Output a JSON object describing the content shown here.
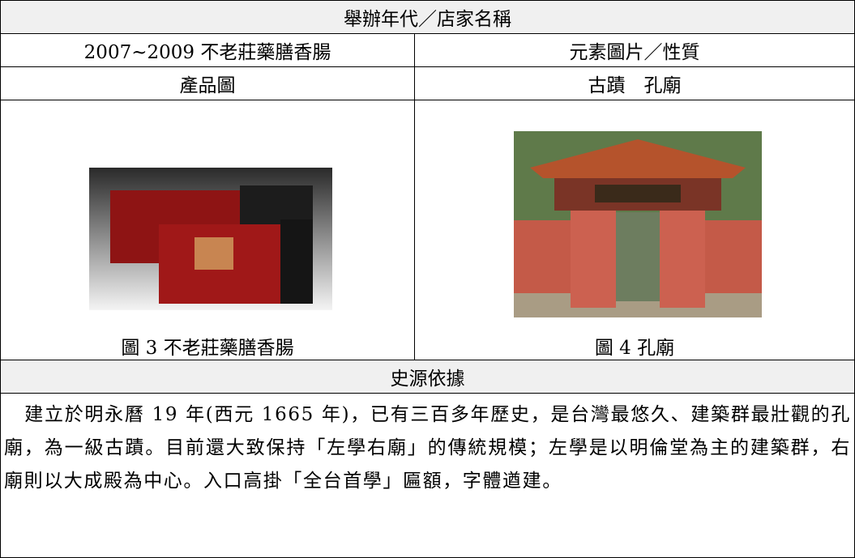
{
  "header": {
    "title": "舉辦年代／店家名稱"
  },
  "table": {
    "rows": [
      [
        "2007~2009 不老莊藥膳香腸",
        "元素圖片／性質"
      ],
      [
        "產品圖",
        "古蹟　孔廟"
      ]
    ]
  },
  "figures": [
    {
      "caption": "圖 3 不老莊藥膳香腸"
    },
    {
      "caption": "圖 4 孔廟"
    }
  ],
  "section": {
    "heading": "史源依據",
    "paragraph": "建立於明永曆 19 年(西元 1665 年)，已有三百多年歷史，是台灣最悠久、建築群最壯觀的孔廟，為一級古蹟。目前還大致保持「左學右廟」的傳統規模；左學是以明倫堂為主的建築群，右廟則以大成殿為中心。入口高掛「全台首學」匾額，字體遒建。"
  }
}
